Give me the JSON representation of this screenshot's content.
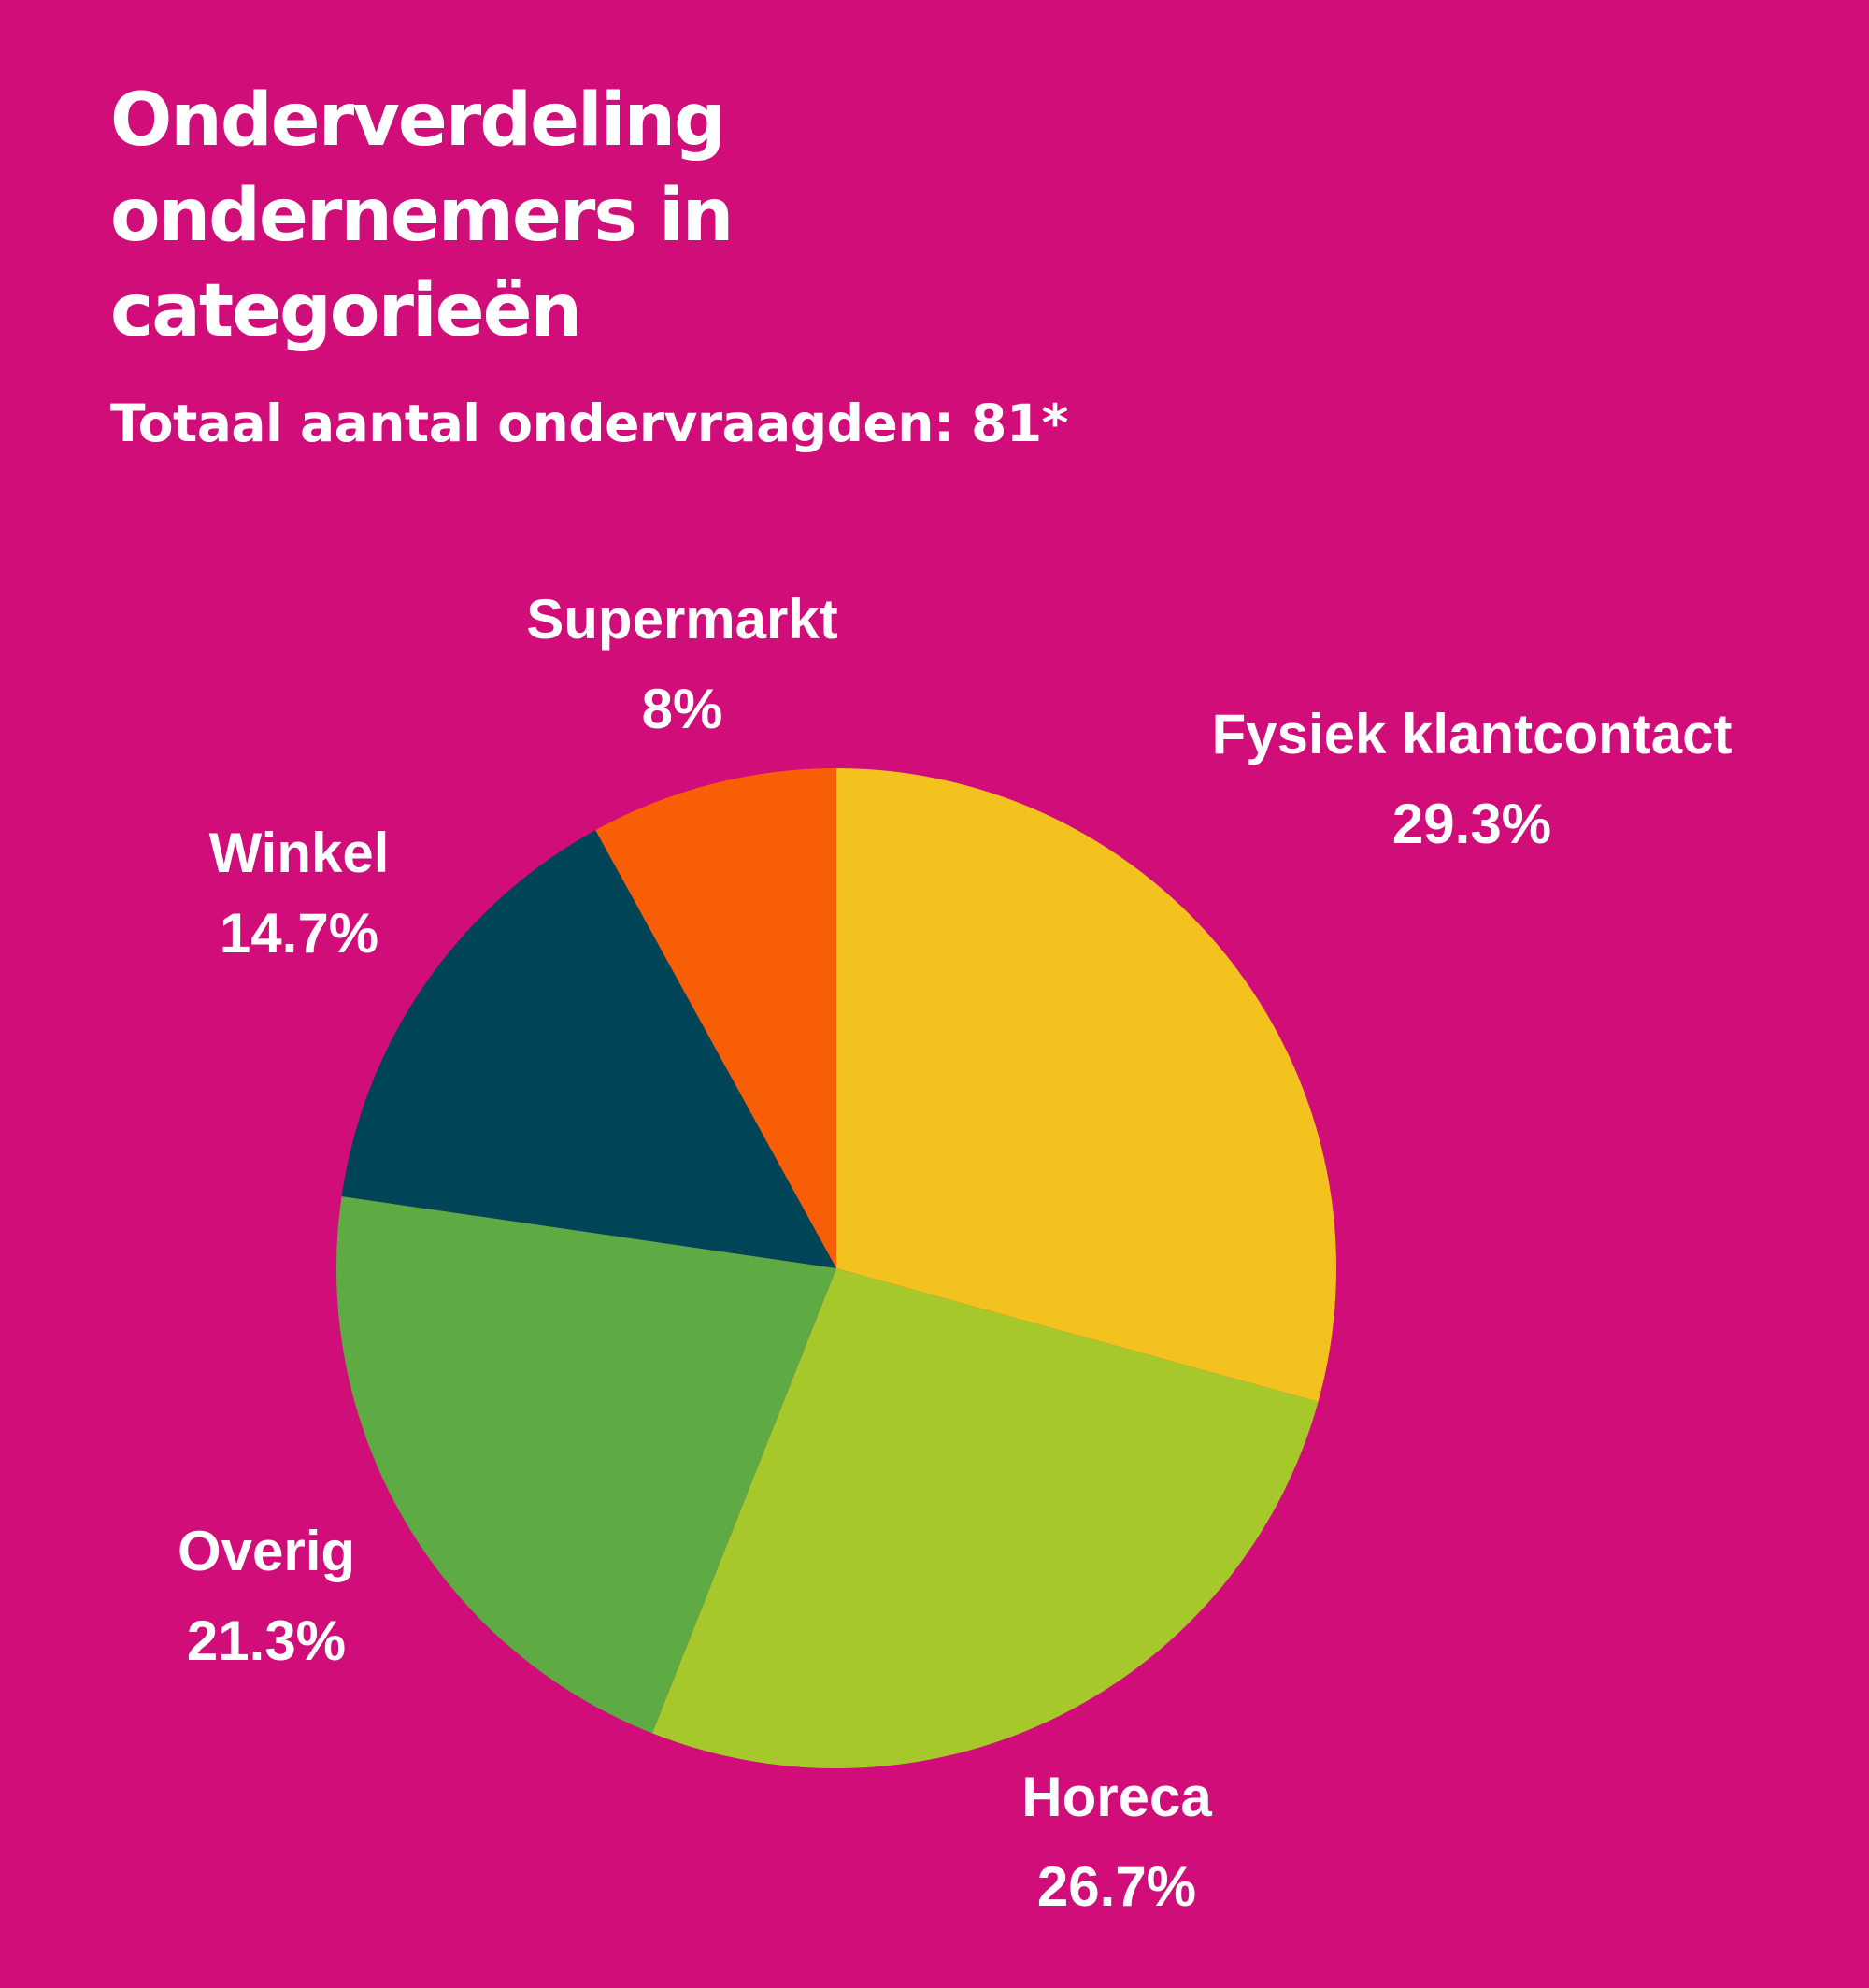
{
  "header": {
    "title_lines": [
      "Onderverdeling",
      "ondernemers in",
      "categorieën"
    ],
    "subtitle": "Totaal aantal ondervraagden: 81*"
  },
  "colors": {
    "background": "#d00d78",
    "Fysiek klantcontact": "#f3c21e",
    "Horeca": "#a7c82a",
    "Overig": "#5fab43",
    "Winkel": "#004457",
    "Supermarkt": "#f85e05"
  },
  "chart_data": {
    "type": "pie",
    "title": "Onderverdeling ondernemers in categorieën",
    "subtitle": "Totaal aantal ondervraagden: 81*",
    "unit": "%",
    "categories": [
      "Fysiek klantcontact",
      "Horeca",
      "Overig",
      "Winkel",
      "Supermarkt"
    ],
    "values": [
      29.3,
      26.7,
      21.3,
      14.7,
      8
    ],
    "value_labels": [
      "29.3%",
      "26.7%",
      "21.3%",
      "14.7%",
      "8%"
    ],
    "start": "12 o'clock",
    "direction": "clockwise"
  }
}
